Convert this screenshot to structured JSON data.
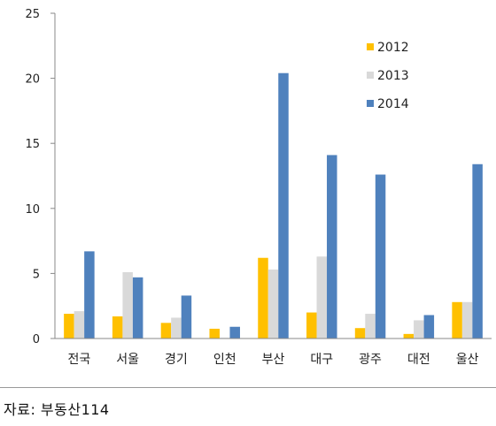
{
  "chart_data": {
    "type": "bar",
    "categories": [
      "전국",
      "서울",
      "경기",
      "인천",
      "부산",
      "대구",
      "광주",
      "대전",
      "울산"
    ],
    "series": [
      {
        "name": "2012",
        "color": "#FFC000",
        "values": [
          1.9,
          1.7,
          1.2,
          0.75,
          6.2,
          2.0,
          0.8,
          0.35,
          2.8
        ]
      },
      {
        "name": "2013",
        "color": "#D9D9D9",
        "values": [
          2.1,
          5.1,
          1.6,
          0.05,
          5.3,
          6.3,
          1.9,
          1.4,
          2.8
        ]
      },
      {
        "name": "2014",
        "color": "#4F81BD",
        "values": [
          6.7,
          4.7,
          3.3,
          0.9,
          20.4,
          14.1,
          12.6,
          1.8,
          13.4
        ]
      }
    ],
    "yticks": [
      0,
      5,
      10,
      15,
      20,
      25
    ],
    "ylim": [
      0,
      25
    ],
    "grid": false,
    "legend_position": "top-right"
  },
  "source": "자료: 부동산114"
}
